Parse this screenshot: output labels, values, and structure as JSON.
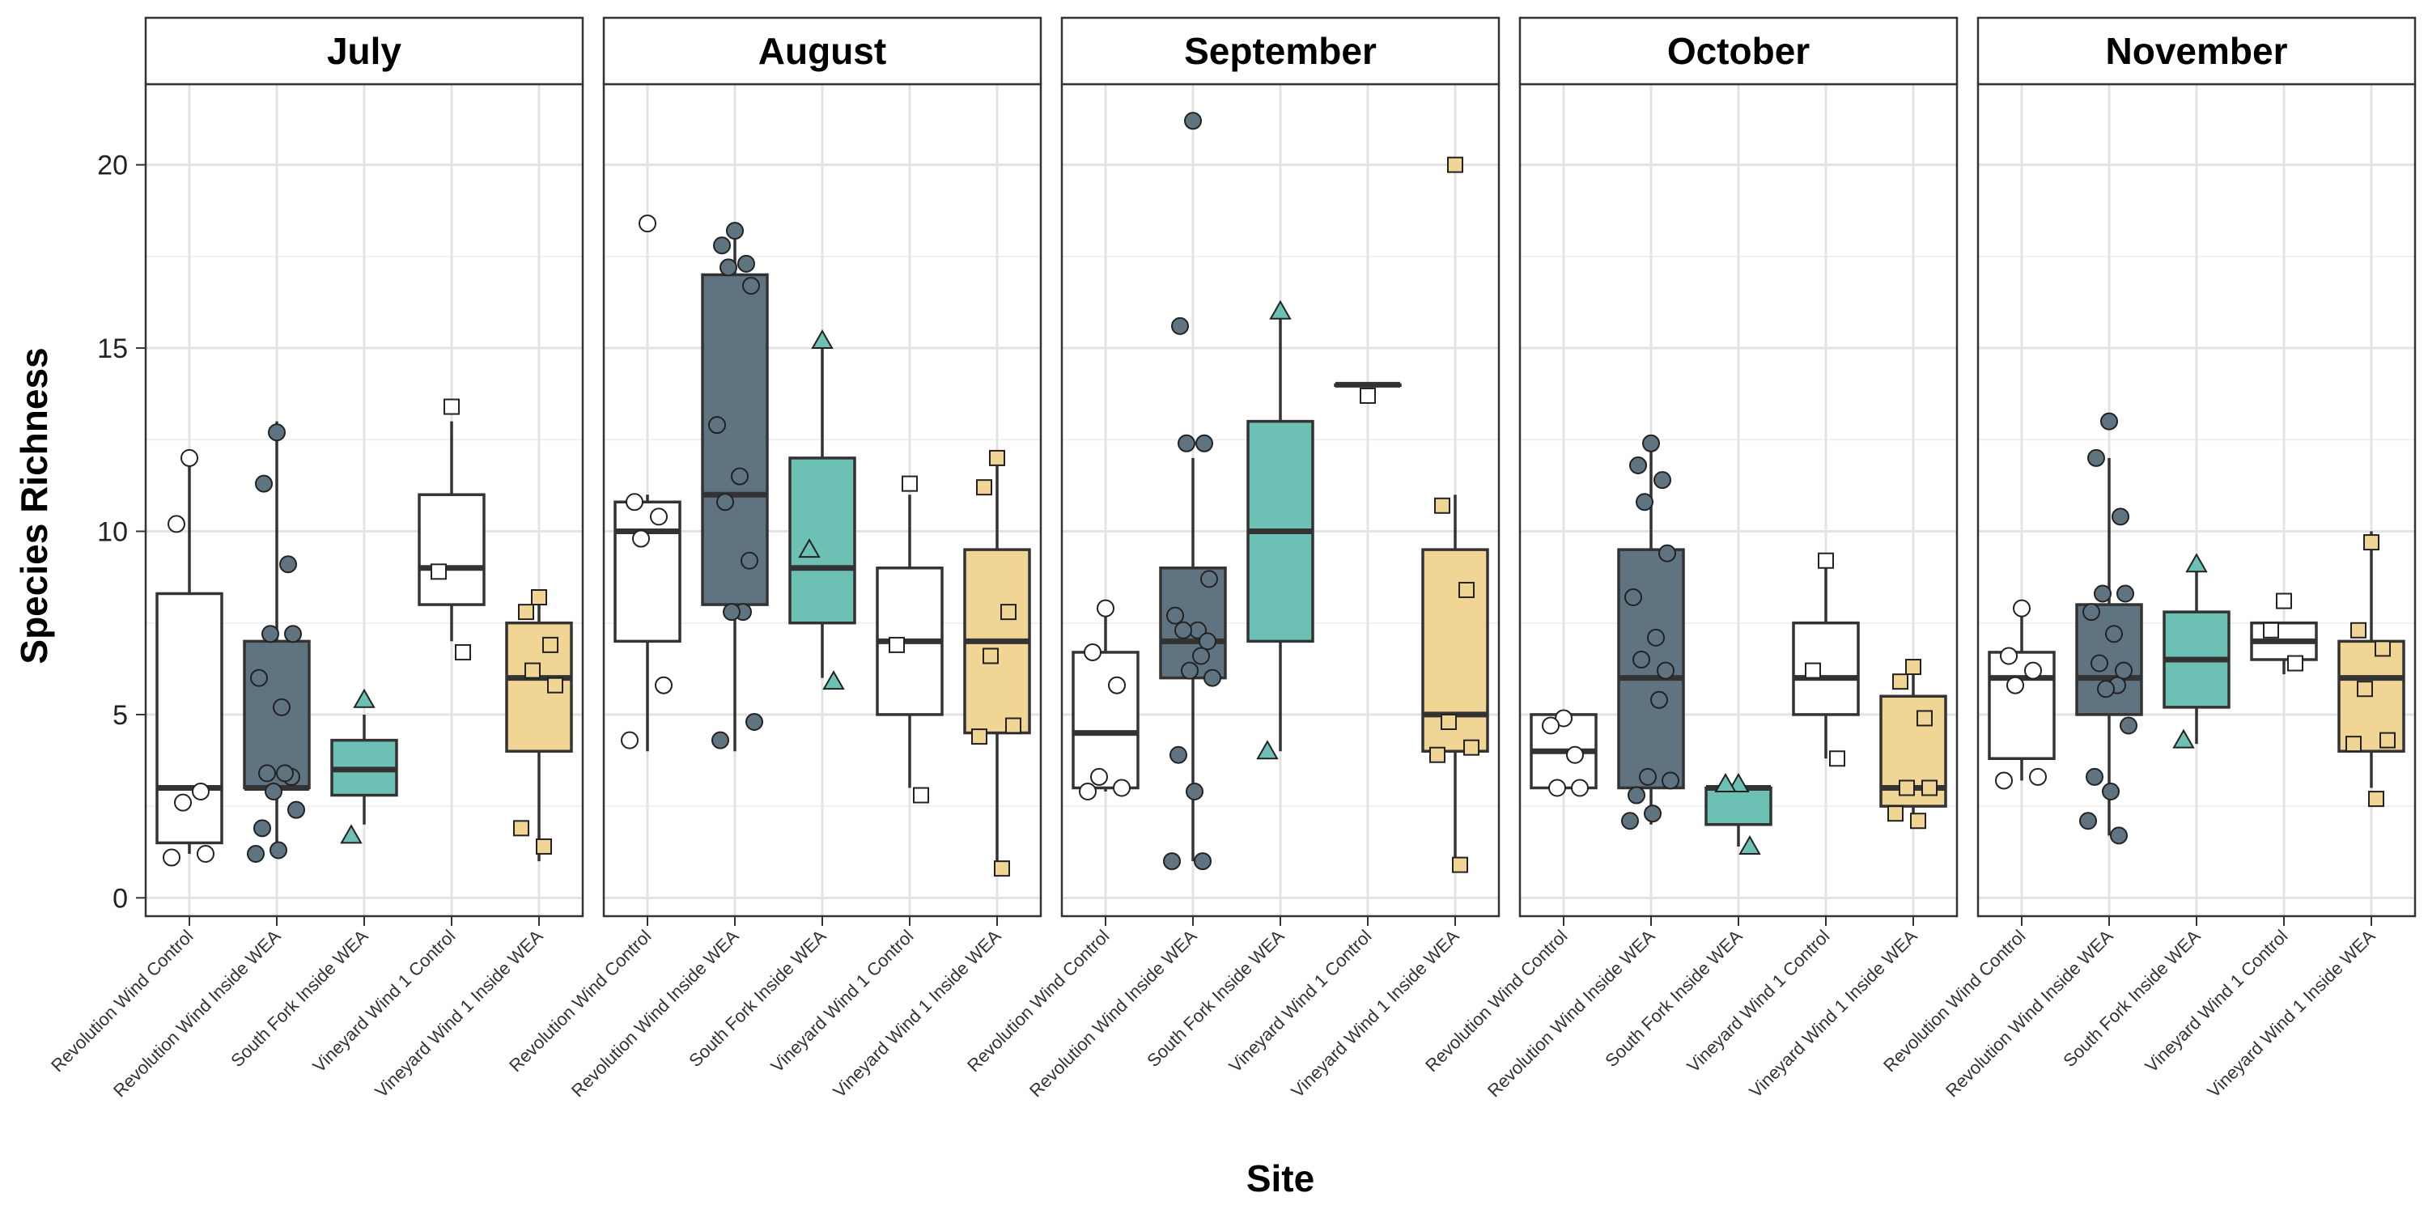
{
  "chart_data": {
    "type": "box",
    "title": "",
    "xlabel": "Site",
    "ylabel": "Species Richness",
    "ylim": [
      -0.5,
      22.2
    ],
    "yticks": [
      0,
      5,
      10,
      15,
      20
    ],
    "grid": true,
    "legend": "none",
    "categories": [
      "Revolution Wind Control",
      "Revolution Wind Inside WEA",
      "South Fork Inside WEA",
      "Vineyard Wind 1 Control",
      "Vineyard Wind 1 Inside WEA"
    ],
    "category_styles": [
      {
        "fill": "#ffffff",
        "marker": "circle"
      },
      {
        "fill": "#5f7480",
        "marker": "circle"
      },
      {
        "fill": "#6cc1b4",
        "marker": "triangle"
      },
      {
        "fill": "#ffffff",
        "marker": "square"
      },
      {
        "fill": "#f0d595",
        "marker": "square"
      }
    ],
    "facets": [
      {
        "label": "July",
        "groups": [
          {
            "box": [
              1.2,
              1.5,
              3,
              8.3,
              12
            ],
            "points": [
              12,
              10.2,
              2.9,
              2.6,
              1.2,
              1.1
            ]
          },
          {
            "box": [
              1.2,
              3,
              3,
              7,
              13
            ],
            "points": [
              12.7,
              11.3,
              9.1,
              7.2,
              7.2,
              6,
              5.2,
              3.4,
              3.3,
              3.4,
              2.9,
              2.4,
              1.9,
              1.3,
              1.2
            ]
          },
          {
            "box": [
              2,
              2.8,
              3.5,
              4.3,
              5
            ],
            "points": [
              5.4,
              1.7
            ]
          },
          {
            "box": [
              7,
              8,
              9,
              11,
              13
            ],
            "points": [
              13.4,
              8.9,
              6.7
            ]
          },
          {
            "box": [
              1,
              4,
              6,
              7.5,
              8.2
            ],
            "points": [
              8.2,
              7.8,
              6.9,
              6.2,
              5.8,
              1.9,
              1.4
            ]
          }
        ]
      },
      {
        "label": "August",
        "groups": [
          {
            "box": [
              4,
              7,
              10,
              10.8,
              11
            ],
            "points": [
              18.4,
              10.8,
              10.4,
              9.8,
              5.8,
              4.3
            ]
          },
          {
            "box": [
              4,
              8,
              11,
              17,
              18.2
            ],
            "points": [
              18.2,
              17.8,
              17.3,
              17.2,
              16.7,
              12.9,
              11.5,
              10.8,
              9.2,
              7.8,
              7.8,
              4.8,
              4.3
            ]
          },
          {
            "box": [
              6,
              7.5,
              9,
              12,
              15
            ],
            "points": [
              15.2,
              9.5,
              5.9
            ]
          },
          {
            "box": [
              3,
              5,
              7,
              9,
              11
            ],
            "points": [
              11.3,
              6.9,
              2.8
            ]
          },
          {
            "box": [
              0.8,
              4.5,
              7,
              9.5,
              12
            ],
            "points": [
              12,
              11.2,
              7.8,
              6.6,
              4.7,
              4.4,
              0.8
            ]
          }
        ]
      },
      {
        "label": "September",
        "groups": [
          {
            "box": [
              2.9,
              3,
              4.5,
              6.7,
              8
            ],
            "points": [
              7.9,
              6.7,
              5.8,
              3.3,
              3,
              2.9
            ]
          },
          {
            "box": [
              1,
              6,
              7,
              9,
              12
            ],
            "points": [
              21.2,
              15.6,
              12.4,
              12.4,
              8.7,
              7.7,
              7.3,
              7.3,
              7,
              6.6,
              6.2,
              6,
              3.9,
              2.9,
              1,
              1
            ]
          },
          {
            "box": [
              4,
              7,
              10,
              13,
              16
            ],
            "points": [
              16,
              4
            ]
          },
          {
            "box": [
              14,
              14,
              14,
              14,
              14
            ],
            "points": [
              13.7
            ]
          },
          {
            "box": [
              1,
              4,
              5,
              9.5,
              11
            ],
            "points": [
              20,
              10.7,
              8.4,
              4.8,
              4.1,
              3.9,
              0.9
            ]
          }
        ]
      },
      {
        "label": "October",
        "groups": [
          {
            "box": [
              3,
              3,
              4,
              5,
              5
            ],
            "points": [
              4.9,
              4.7,
              3.9,
              3,
              3
            ]
          },
          {
            "box": [
              2,
              3,
              6,
              9.5,
              12.4
            ],
            "points": [
              12.4,
              11.8,
              11.4,
              10.8,
              9.4,
              8.2,
              7.1,
              6.5,
              6.2,
              5.4,
              3.3,
              3.2,
              2.8,
              2.3,
              2.1
            ]
          },
          {
            "box": [
              1.4,
              2,
              3,
              3,
              3
            ],
            "points": [
              3.1,
              3.1,
              1.4
            ]
          },
          {
            "box": [
              3.8,
              5,
              6,
              7.5,
              9.2
            ],
            "points": [
              9.2,
              6.2,
              3.8
            ]
          },
          {
            "box": [
              2.1,
              2.5,
              3,
              5.5,
              6.2
            ],
            "points": [
              6.3,
              5.9,
              4.9,
              3,
              3,
              2.3,
              2.1
            ]
          }
        ]
      },
      {
        "label": "November",
        "groups": [
          {
            "box": [
              3.2,
              3.8,
              6,
              6.7,
              8
            ],
            "points": [
              7.9,
              6.6,
              6.2,
              5.8,
              3.3,
              3.2
            ]
          },
          {
            "box": [
              1.7,
              5,
              6,
              8,
              12
            ],
            "points": [
              13,
              12,
              10.4,
              8.3,
              8.3,
              7.8,
              7.2,
              6.4,
              6.2,
              5.8,
              5.7,
              4.7,
              3.3,
              2.9,
              2.1,
              1.7
            ]
          },
          {
            "box": [
              4.2,
              5.2,
              6.5,
              7.8,
              9.1
            ],
            "points": [
              9.1,
              4.3
            ]
          },
          {
            "box": [
              6.1,
              6.5,
              7,
              7.5,
              7.5
            ],
            "points": [
              8.1,
              7.3,
              6.4
            ]
          },
          {
            "box": [
              3,
              4,
              6,
              7,
              10
            ],
            "points": [
              9.7,
              7.3,
              6.8,
              5.7,
              4.3,
              4.2,
              2.7
            ]
          }
        ]
      }
    ]
  }
}
